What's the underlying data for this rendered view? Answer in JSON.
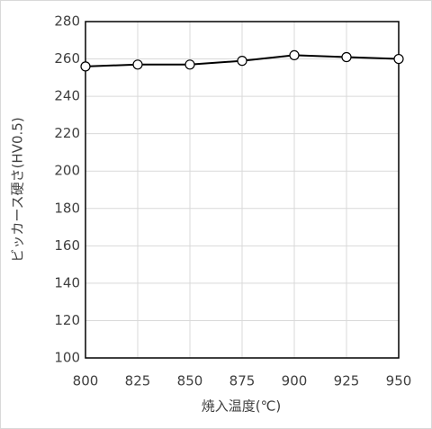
{
  "chart_data": {
    "type": "line",
    "x_label": "焼入温度(℃)",
    "y_label": "ビッカース硬さ(HV0.5)",
    "x": [
      800,
      825,
      850,
      875,
      900,
      925,
      950
    ],
    "series": [
      {
        "name": "HV0.5",
        "color": "#000000",
        "values": [
          256,
          257,
          257,
          259,
          262,
          261,
          260
        ]
      }
    ],
    "xlim": [
      800,
      950
    ],
    "xticks": [
      800,
      825,
      850,
      875,
      900,
      925,
      950
    ],
    "ylim": [
      100,
      280
    ],
    "yticks": [
      100,
      120,
      140,
      160,
      180,
      200,
      220,
      240,
      260,
      280
    ],
    "grid": true
  }
}
